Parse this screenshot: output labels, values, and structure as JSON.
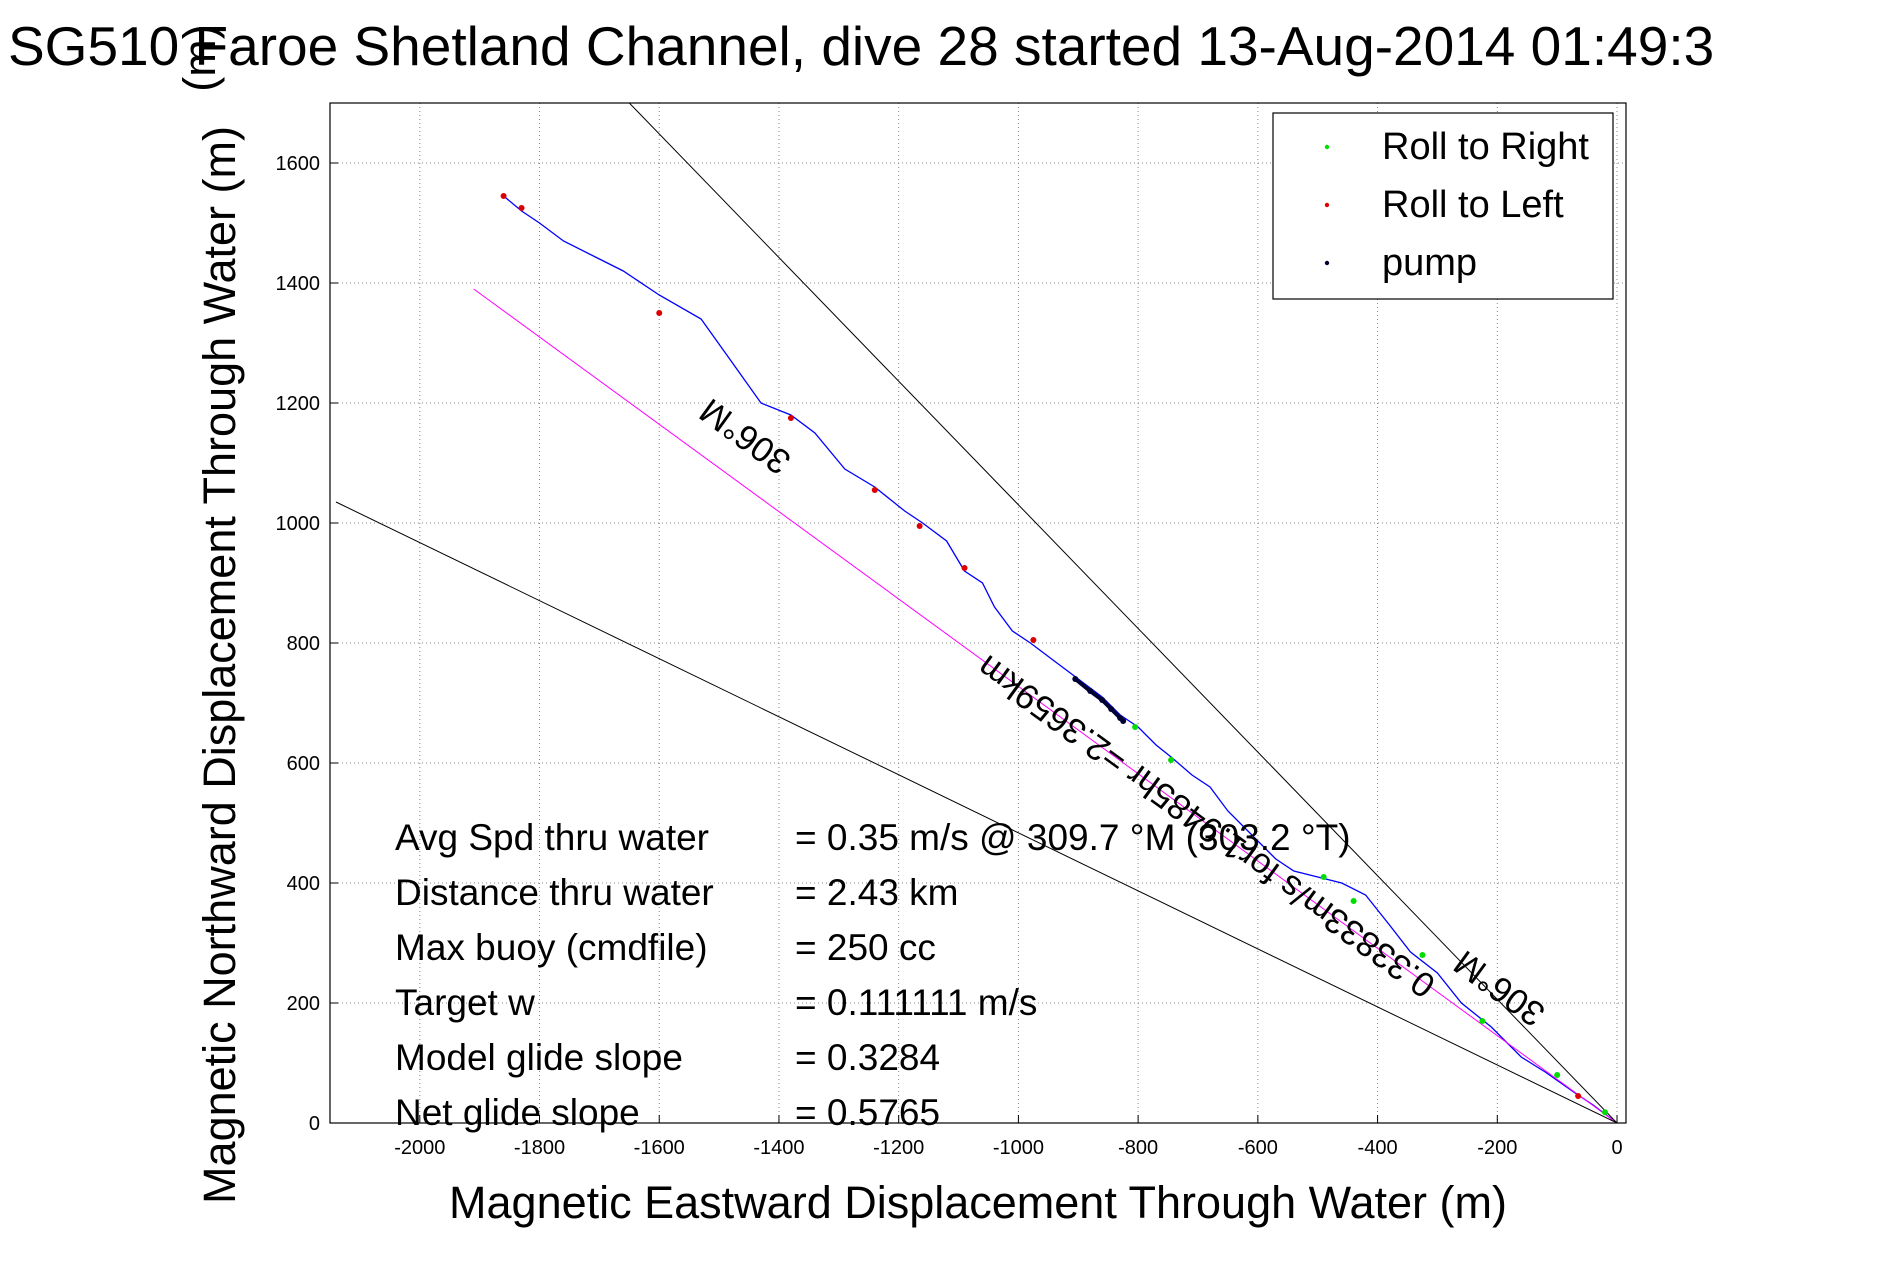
{
  "chart_data": {
    "type": "line",
    "title": "SG510 Faroe Shetland Channel, dive 28 started 13-Aug-2014 01:49:3",
    "title_overlay_glyph": "(m)",
    "xlabel": "Magnetic Eastward Displacement Through Water (m)",
    "ylabel": "Magnetic Northward Displacement Through Water (m)",
    "xlim": [
      -2150,
      15
    ],
    "ylim": [
      0,
      1700
    ],
    "x_ticks": [
      -2000,
      -1800,
      -1600,
      -1400,
      -1200,
      -1000,
      -800,
      -600,
      -400,
      -200,
      0
    ],
    "y_ticks": [
      0,
      200,
      400,
      600,
      800,
      1000,
      1200,
      1400,
      1600
    ],
    "grid": true,
    "legend_position": "top-right",
    "legend": [
      {
        "label": "Roll to Right",
        "color": "#00dd00"
      },
      {
        "label": "Roll to Left",
        "color": "#dd0000"
      },
      {
        "label": "pump",
        "color": "#000033"
      }
    ],
    "series": [
      {
        "color": "#0000ff",
        "x": [
          0,
          -40,
          -70,
          -120,
          -160,
          -210,
          -260,
          -300,
          -345,
          -380,
          -420,
          -460,
          -500,
          -540,
          -570,
          -610,
          -650,
          -680,
          -710,
          -745,
          -770,
          -800,
          -830,
          -860,
          -900,
          -940,
          -980,
          -1010,
          -1040,
          -1060,
          -1090,
          -1120,
          -1160,
          -1190,
          -1240,
          -1290,
          -1340,
          -1380,
          -1430,
          -1480,
          -1530,
          -1600,
          -1660,
          -1700,
          -1760,
          -1800,
          -1830,
          -1860
        ],
        "y": [
          0,
          30,
          50,
          85,
          110,
          160,
          200,
          250,
          285,
          330,
          380,
          400,
          410,
          420,
          440,
          480,
          520,
          560,
          580,
          610,
          630,
          660,
          680,
          710,
          740,
          770,
          800,
          820,
          860,
          900,
          920,
          970,
          1000,
          1020,
          1060,
          1090,
          1150,
          1180,
          1200,
          1270,
          1340,
          1380,
          1420,
          1440,
          1470,
          1500,
          1520,
          1545
        ]
      },
      {
        "color": "#ff00ff",
        "x": [
          0,
          -1910
        ],
        "y": [
          0,
          1390
        ]
      },
      {
        "color": "#000000",
        "x": [
          0,
          -1650
        ],
        "y": [
          0,
          1700
        ]
      },
      {
        "color": "#000000",
        "x": [
          0,
          -2140
        ],
        "y": [
          0,
          1035
        ]
      }
    ],
    "points": {
      "roll_right": {
        "color": "#00dd00",
        "x": [
          -20,
          -100,
          -225,
          -325,
          -440,
          -490,
          -745,
          -805
        ],
        "y": [
          18,
          80,
          170,
          280,
          370,
          410,
          605,
          660
        ]
      },
      "roll_left": {
        "color": "#dd0000",
        "x": [
          -65,
          -975,
          -1090,
          -1165,
          -1240,
          -1380,
          -1600,
          -1830,
          -1860
        ],
        "y": [
          45,
          805,
          925,
          995,
          1055,
          1175,
          1350,
          1525,
          1545
        ]
      },
      "pump": {
        "color": "#000033",
        "x": [
          -905,
          -880,
          -860,
          -845,
          -830,
          -825
        ],
        "y": [
          740,
          720,
          705,
          690,
          675,
          670
        ]
      }
    },
    "annotations": [
      {
        "text": "306°M",
        "x": -1445,
        "y": 1160,
        "angle": 216
      },
      {
        "text": "0.33833m/s for1.9485hr =2.3659km",
        "x": -675,
        "y": 510,
        "angle": 216
      },
      {
        "text": "306°M",
        "x": -185,
        "y": 240,
        "angle": 216
      }
    ]
  },
  "stats": [
    {
      "label": "Avg Spd thru water",
      "value": "=  0.35 m/s @ 309.7 °M (303.2 °T)"
    },
    {
      "label": "Distance thru water",
      "value": "=  2.43 km"
    },
    {
      "label": "Max buoy (cmdfile)",
      "value": "= 250 cc"
    },
    {
      "label": "Target w",
      "value": "= 0.111111 m/s"
    },
    {
      "label": "Model glide slope",
      "value": "= 0.3284"
    },
    {
      "label": "Net glide slope",
      "value": "= 0.5765"
    }
  ]
}
